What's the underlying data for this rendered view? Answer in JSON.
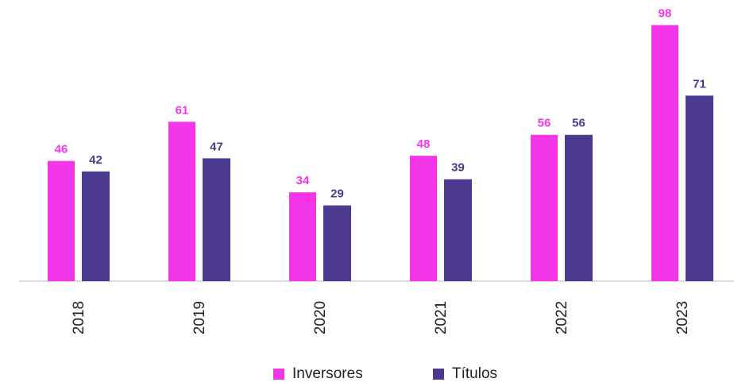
{
  "chart_data": {
    "type": "bar",
    "categories": [
      "2018",
      "2019",
      "2020",
      "2021",
      "2022",
      "2023"
    ],
    "series": [
      {
        "name": "Inversores",
        "color": "#f535e8",
        "values": [
          46,
          61,
          34,
          48,
          56,
          98
        ]
      },
      {
        "name": "Títulos",
        "color": "#4b3a8f",
        "values": [
          42,
          47,
          29,
          39,
          56,
          71
        ]
      }
    ],
    "ylim": [
      0,
      100
    ]
  }
}
